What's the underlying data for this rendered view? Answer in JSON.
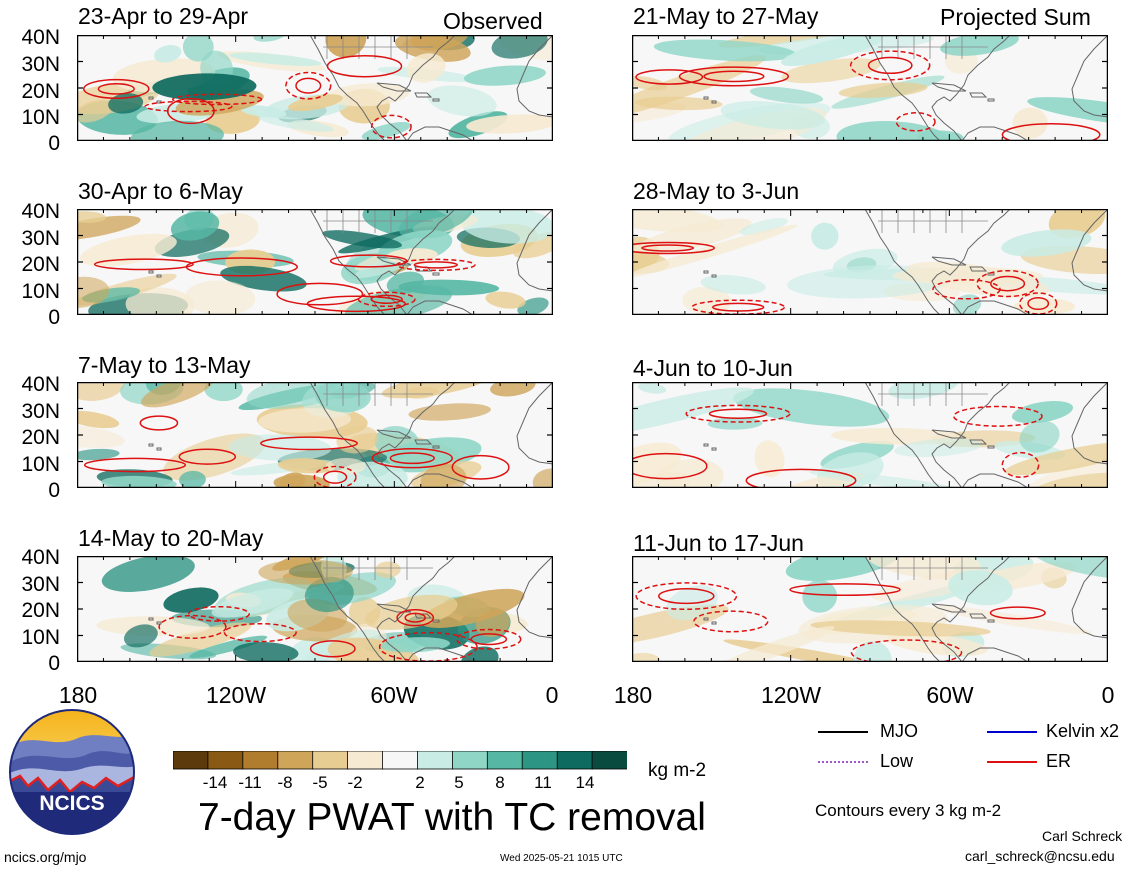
{
  "header": {
    "left_label": "Observed",
    "right_label": "Projected Sum"
  },
  "panels": [
    {
      "title": "23-Apr to 29-Apr",
      "kind": "observed"
    },
    {
      "title": "30-Apr to 6-May",
      "kind": "observed"
    },
    {
      "title": "7-May to 13-May",
      "kind": "observed"
    },
    {
      "title": "14-May to 20-May",
      "kind": "observed"
    },
    {
      "title": "21-May to 27-May",
      "kind": "projected"
    },
    {
      "title": "28-May to 3-Jun",
      "kind": "projected"
    },
    {
      "title": "4-Jun to 10-Jun",
      "kind": "projected"
    },
    {
      "title": "11-Jun to 17-Jun",
      "kind": "projected"
    }
  ],
  "y_axis_labels": [
    "40N",
    "30N",
    "20N",
    "10N",
    "0"
  ],
  "x_axis_labels": [
    "180",
    "120W",
    "60W",
    "0"
  ],
  "colorbar": {
    "ticks": [
      "-14",
      "-11",
      "-8",
      "-5",
      "-2",
      "2",
      "5",
      "8",
      "11",
      "14"
    ],
    "colors": [
      "#5c3a0b",
      "#8a5a14",
      "#b07c2e",
      "#cfa55a",
      "#e8cd92",
      "#f6ead2",
      "#f7f7f7",
      "#c9ece5",
      "#8fd6c7",
      "#56b7a4",
      "#2d9583",
      "#0e6b5f",
      "#0a4b40"
    ],
    "units": "kg m-2"
  },
  "legend": {
    "items": [
      {
        "label": "MJO",
        "color": "#000000",
        "style": "solid"
      },
      {
        "label": "Kelvin x2",
        "color": "#0000cc",
        "style": "solid"
      },
      {
        "label": "Low",
        "color": "#9b59d0",
        "style": "dotted"
      },
      {
        "label": "ER",
        "color": "#dd1111",
        "style": "solid"
      }
    ],
    "contour_note": "Contours every 3 kg m-2"
  },
  "main_title": "7-day PWAT with TC removal",
  "footer": {
    "left": "ncics.org/mjo",
    "center": "Wed 2025-05-21 1015 UTC",
    "author": "Carl Schreck",
    "email": "carl_schreck@ncsu.edu"
  },
  "logo": {
    "text": "NCICS"
  }
}
